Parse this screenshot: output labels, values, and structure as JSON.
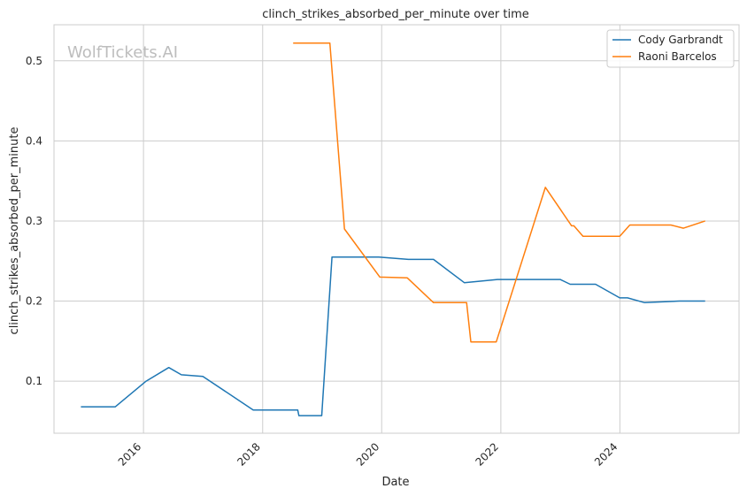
{
  "chart_data": {
    "type": "line",
    "title": "clinch_strikes_absorbed_per_minute over time",
    "xlabel": "Date",
    "ylabel": "clinch_strikes_absorbed_per_minute",
    "watermark": "WolfTickets.AI",
    "x_ticks": [
      "2016",
      "2018",
      "2020",
      "2022",
      "2024"
    ],
    "y_ticks": [
      "0.1",
      "0.2",
      "0.3",
      "0.4",
      "0.5"
    ],
    "xlim": [
      "2014-07-01",
      "2026-01-01"
    ],
    "ylim": [
      0.035,
      0.545
    ],
    "grid": true,
    "legend_position": "top-right",
    "series": [
      {
        "name": "Cody Garbrandt",
        "color": "#1f77b4",
        "points": [
          [
            "2014-12-13",
            0.068
          ],
          [
            "2015-07-12",
            0.068
          ],
          [
            "2016-01-17",
            0.1
          ],
          [
            "2016-06-04",
            0.117
          ],
          [
            "2016-08-20",
            0.108
          ],
          [
            "2016-12-30",
            0.106
          ],
          [
            "2017-11-04",
            0.064
          ],
          [
            "2018-08-04",
            0.064
          ],
          [
            "2018-08-11",
            0.057
          ],
          [
            "2018-12-29",
            0.057
          ],
          [
            "2019-03-02",
            0.255
          ],
          [
            "2019-12-14",
            0.255
          ],
          [
            "2020-06-13",
            0.252
          ],
          [
            "2020-11-14",
            0.252
          ],
          [
            "2021-05-22",
            0.223
          ],
          [
            "2021-12-11",
            0.227
          ],
          [
            "2022-09-10",
            0.227
          ],
          [
            "2022-12-31",
            0.227
          ],
          [
            "2023-03-02",
            0.221
          ],
          [
            "2023-08-05",
            0.221
          ],
          [
            "2023-12-31",
            0.204
          ],
          [
            "2024-02-17",
            0.204
          ],
          [
            "2024-06-01",
            0.198
          ],
          [
            "2024-12-31",
            0.2
          ],
          [
            "2025-06-07",
            0.2
          ]
        ]
      },
      {
        "name": "Raoni Barcelos",
        "color": "#ff7f0e",
        "points": [
          [
            "2018-07-07",
            0.522
          ],
          [
            "2019-02-17",
            0.522
          ],
          [
            "2019-05-18",
            0.29
          ],
          [
            "2019-12-21",
            0.23
          ],
          [
            "2020-06-06",
            0.229
          ],
          [
            "2020-11-14",
            0.198
          ],
          [
            "2021-06-05",
            0.198
          ],
          [
            "2021-07-01",
            0.149
          ],
          [
            "2021-12-04",
            0.149
          ],
          [
            "2022-10-01",
            0.342
          ],
          [
            "2023-03-11",
            0.294
          ],
          [
            "2023-03-25",
            0.294
          ],
          [
            "2023-05-20",
            0.281
          ],
          [
            "2023-12-31",
            0.281
          ],
          [
            "2024-03-02",
            0.295
          ],
          [
            "2024-11-09",
            0.295
          ],
          [
            "2025-01-25",
            0.291
          ],
          [
            "2025-06-07",
            0.3
          ]
        ]
      }
    ]
  }
}
